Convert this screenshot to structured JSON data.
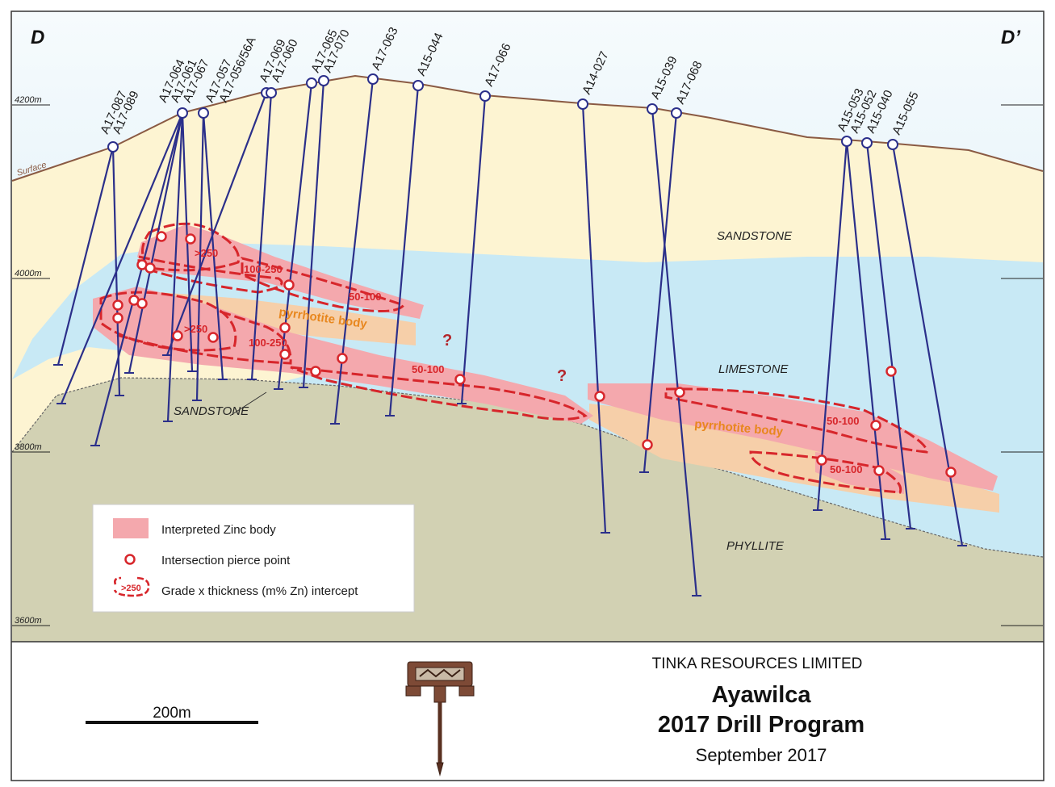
{
  "section": {
    "left_label": "D",
    "right_label": "D’",
    "surface_label": "Surface",
    "elevations": [
      "4200m",
      "4000m",
      "3800m",
      "3600m"
    ]
  },
  "units": {
    "sandstone_upper": "SANDSTONE",
    "limestone": "LIMESTONE",
    "sandstone_lower": "SANDSTONE",
    "phyllite": "PHYLLITE"
  },
  "zones": {
    "pyrrhotite_left": "pyrrhotite body",
    "pyrrhotite_right": "pyrrhotite body",
    "grades": [
      ">250",
      "100-250",
      "50-100",
      ">250",
      "100-250",
      "50-100",
      "50-100",
      "50-100"
    ],
    "question": "?"
  },
  "drill_holes": [
    "A17-087",
    "A17-089",
    "A17-064",
    "A17-061",
    "A17-067",
    "A17-057",
    "A17-056/56A",
    "A17-069",
    "A17-060",
    "A17-065",
    "A17-070",
    "A17-063",
    "A15-044",
    "A17-066",
    "A14-027",
    "A15-039",
    "A17-068",
    "A15-053",
    "A15-052",
    "A15-040",
    "A15-055"
  ],
  "legend": {
    "zinc_body": "Interpreted Zinc body",
    "pierce_point": "Intersection pierce point",
    "intercept": "Grade x thickness (m% Zn) intercept",
    "intercept_symbol": ">250"
  },
  "title_block": {
    "company": "TINKA RESOURCES LIMITED",
    "project": "Ayawilca",
    "program": "2017 Drill Program",
    "date": "September 2017",
    "scale": "200m"
  },
  "colors": {
    "sky": "#dceff8",
    "sandstone": "#fdf4d2",
    "limestone": "#c8e9f5",
    "phyllite": "#d2d1b3",
    "zinc_body": "#f4a8ad",
    "pyrrhotite": "#f6cfa9",
    "drill_line": "#2b2f8a",
    "intercept": "#d7262b"
  }
}
